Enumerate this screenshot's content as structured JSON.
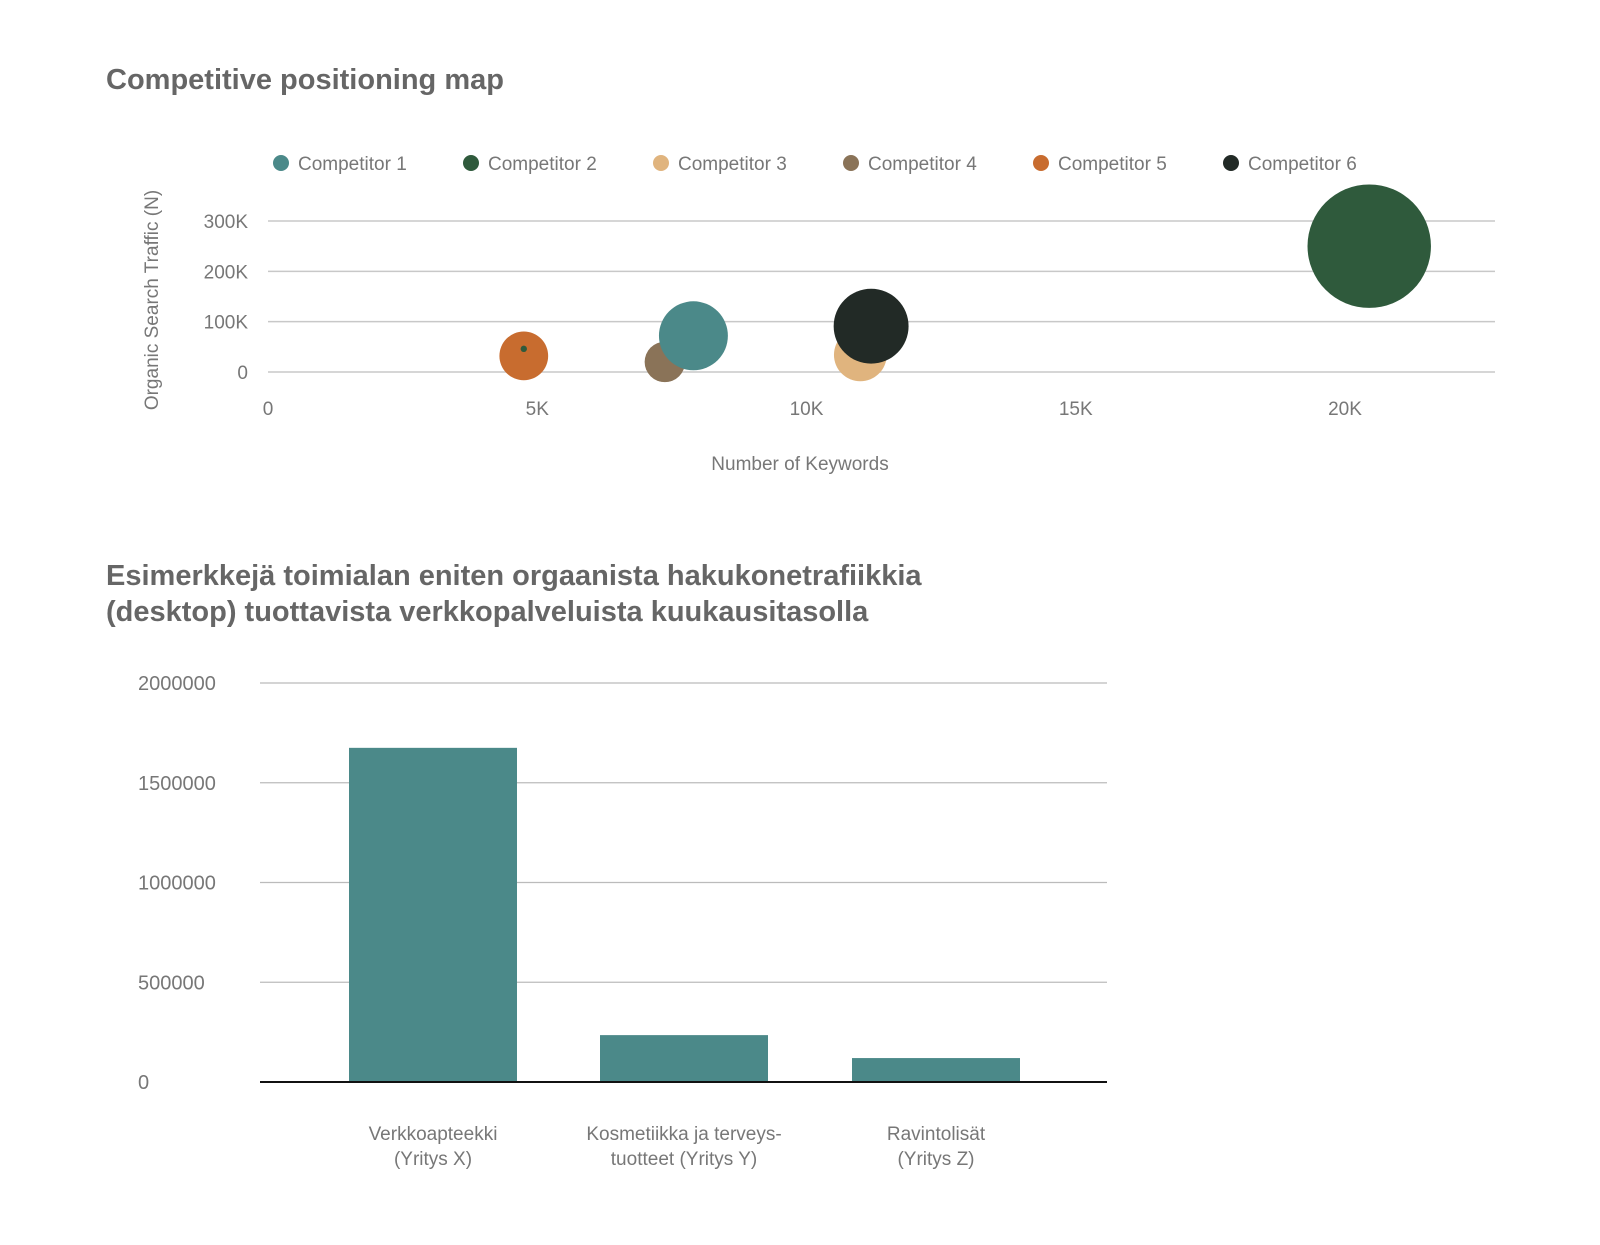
{
  "chart_data": [
    {
      "type": "scatter",
      "title": "Competitive positioning map",
      "xlabel": "Number of Keywords",
      "ylabel": "Organic Search Traffic (N)",
      "xlim": [
        0,
        22000
      ],
      "ylim": [
        0,
        300000
      ],
      "x_ticks": [
        {
          "v": 0,
          "label": "0"
        },
        {
          "v": 5000,
          "label": "5K"
        },
        {
          "v": 10000,
          "label": "10K"
        },
        {
          "v": 15000,
          "label": "15K"
        },
        {
          "v": 20000,
          "label": "20K"
        }
      ],
      "y_ticks": [
        {
          "v": 0,
          "label": "0"
        },
        {
          "v": 100000,
          "label": "100K"
        },
        {
          "v": 200000,
          "label": "200K"
        },
        {
          "v": 300000,
          "label": "300K"
        }
      ],
      "grid": true,
      "legend_position": "top",
      "series": [
        {
          "name": "Competitor 1",
          "color": "#4b8989",
          "points": [
            {
              "x": 7900,
              "y": 72000,
              "size": 116
            }
          ]
        },
        {
          "name": "Competitor 2",
          "color": "#2f5a3c",
          "points": [
            {
              "x": 20450,
              "y": 250000,
              "size": 372
            },
            {
              "x": 4750,
              "y": 46000,
              "size": 1
            }
          ]
        },
        {
          "name": "Competitor 3",
          "color": "#e0b47e",
          "points": [
            {
              "x": 11000,
              "y": 34000,
              "size": 68
            }
          ]
        },
        {
          "name": "Competitor 4",
          "color": "#8a7358",
          "points": [
            {
              "x": 7370,
              "y": 20000,
              "size": 40
            }
          ]
        },
        {
          "name": "Competitor 5",
          "color": "#c86c2f",
          "points": [
            {
              "x": 4750,
              "y": 32000,
              "size": 58
            }
          ]
        },
        {
          "name": "Competitor 6",
          "color": "#222a26",
          "points": [
            {
              "x": 11200,
              "y": 91000,
              "size": 137
            }
          ]
        }
      ]
    },
    {
      "type": "bar",
      "title": "Esimerkkejä toimialan eniten orgaanista hakukonetrafiikkia (desktop) tuottavista verkkopalveluista kuukausitasolla",
      "title_lines": [
        "Esimerkkejä toimialan eniten orgaanista hakukonetrafiikkia",
        "(desktop) tuottavista verkkopalveluista kuukausitasolla"
      ],
      "categories": [
        [
          "Verkkoapteekki",
          "(Yritys X)"
        ],
        [
          "Kosmetiikka ja terveys-",
          "tuotteet (Yritys Y)"
        ],
        [
          "Ravintolisät",
          "(Yritys Z)"
        ]
      ],
      "values": [
        1675000,
        235000,
        120000
      ],
      "color": "#4b8989",
      "ylim": [
        0,
        2000000
      ],
      "y_ticks": [
        {
          "v": 0,
          "label": "0"
        },
        {
          "v": 500000,
          "label": "500000"
        },
        {
          "v": 1000000,
          "label": "1000000"
        },
        {
          "v": 1500000,
          "label": "1500000"
        },
        {
          "v": 2000000,
          "label": "2000000"
        }
      ],
      "grid": true
    }
  ]
}
